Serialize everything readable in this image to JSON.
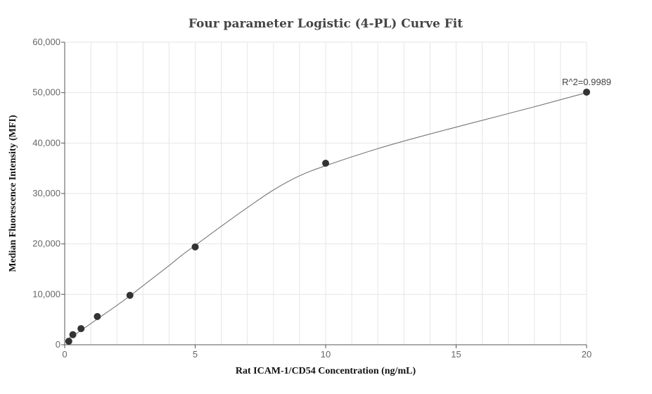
{
  "chart_data": {
    "type": "scatter",
    "title": "Four parameter Logistic (4-PL) Curve Fit",
    "xlabel": "Rat ICAM-1/CD54 Concentration (ng/mL)",
    "ylabel": "Median Fluorescence Intensity (MFI)",
    "xlim": [
      0,
      20
    ],
    "ylim": [
      0,
      60000
    ],
    "x_ticks": [
      0,
      5,
      10,
      15,
      20
    ],
    "x_tick_labels": [
      "0",
      "5",
      "10",
      "15",
      "20"
    ],
    "y_ticks": [
      0,
      10000,
      20000,
      30000,
      40000,
      50000,
      60000
    ],
    "y_tick_labels": [
      "0",
      "10,000",
      "20,000",
      "30,000",
      "40,000",
      "50,000",
      "60,000"
    ],
    "grid": true,
    "series": [
      {
        "points": [
          {
            "x": 0.156,
            "y": 700
          },
          {
            "x": 0.3125,
            "y": 2000
          },
          {
            "x": 0.625,
            "y": 3200
          },
          {
            "x": 1.25,
            "y": 5600
          },
          {
            "x": 2.5,
            "y": 9800
          },
          {
            "x": 5,
            "y": 19400
          },
          {
            "x": 10,
            "y": 36000
          },
          {
            "x": 20,
            "y": 50100
          }
        ],
        "color": "#333333"
      }
    ],
    "fit_curve": {
      "model": "4-PL",
      "color": "#777777",
      "samples": [
        {
          "x": 0.156,
          "y": 1300
        },
        {
          "x": 0.5,
          "y": 2400
        },
        {
          "x": 1,
          "y": 4200
        },
        {
          "x": 1.5,
          "y": 6000
        },
        {
          "x": 2,
          "y": 7800
        },
        {
          "x": 2.5,
          "y": 9700
        },
        {
          "x": 3,
          "y": 11700
        },
        {
          "x": 3.5,
          "y": 13700
        },
        {
          "x": 4,
          "y": 15700
        },
        {
          "x": 4.5,
          "y": 17800
        },
        {
          "x": 5,
          "y": 19700
        },
        {
          "x": 6,
          "y": 23500
        },
        {
          "x": 7,
          "y": 27200
        },
        {
          "x": 8,
          "y": 30700
        },
        {
          "x": 9,
          "y": 33500
        },
        {
          "x": 10,
          "y": 35500
        },
        {
          "x": 12,
          "y": 38900
        },
        {
          "x": 14,
          "y": 41800
        },
        {
          "x": 16,
          "y": 44500
        },
        {
          "x": 18,
          "y": 47200
        },
        {
          "x": 20,
          "y": 50000
        }
      ]
    },
    "annotations": [
      {
        "text": "R^2=0.9989",
        "x": 20,
        "y": 50100
      }
    ]
  }
}
